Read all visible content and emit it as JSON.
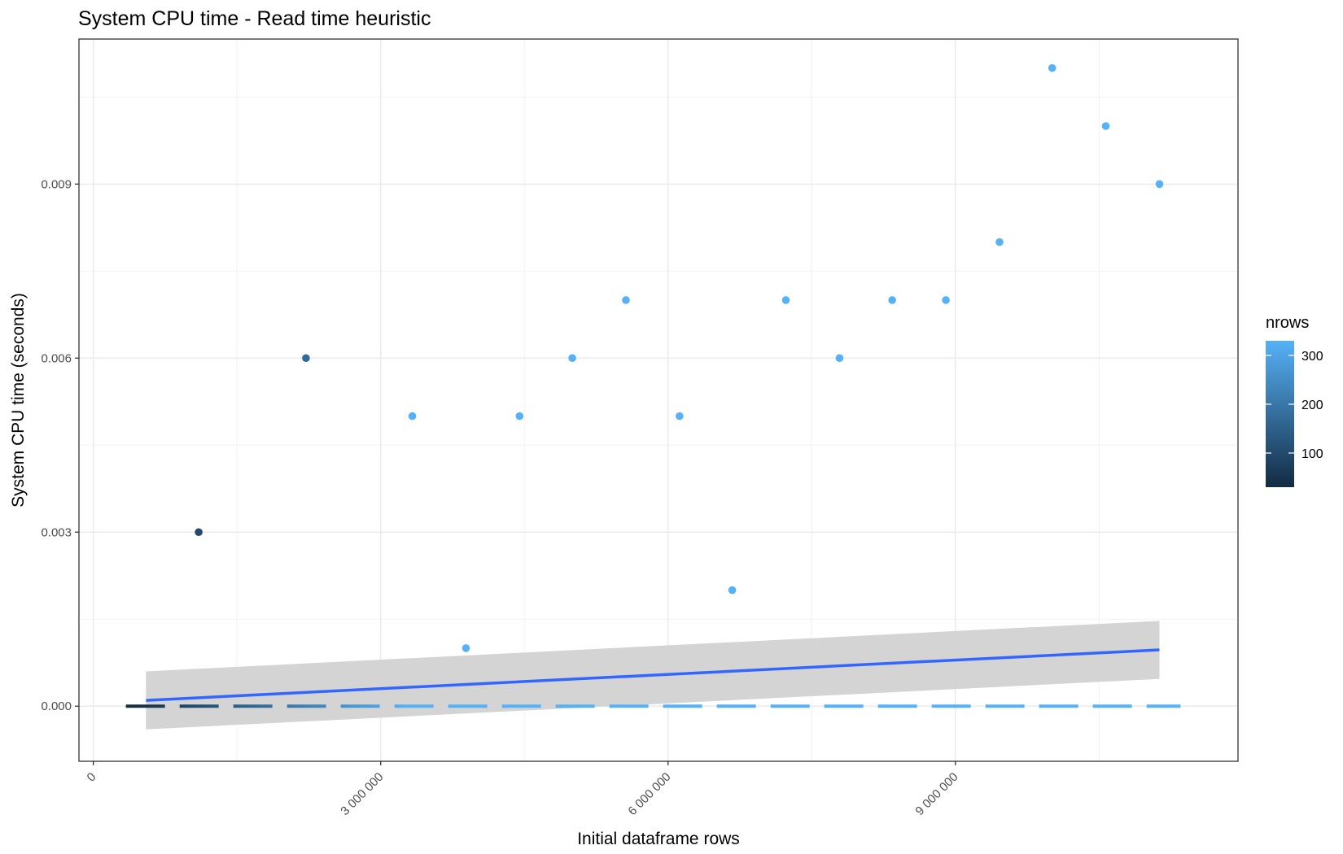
{
  "chart_data": {
    "type": "scatter",
    "title": "System CPU time - Read time heuristic",
    "xlabel": "Initial dataframe rows",
    "ylabel": "System CPU time (seconds)",
    "xlim": [
      -150000,
      11950000
    ],
    "ylim": [
      -0.00095,
      0.0115
    ],
    "x_ticks": [
      0,
      3000000,
      6000000,
      9000000
    ],
    "x_tick_labels": [
      "0",
      "3 000 000",
      "6 000 000",
      "9 000 000"
    ],
    "y_ticks": [
      0,
      0.003,
      0.006,
      0.009
    ],
    "y_tick_labels": [
      "0.000",
      "0.003",
      "0.006",
      "0.009"
    ],
    "grid": true,
    "legend_position": "right",
    "color_scale": {
      "title": "nrows",
      "low_color": "#132B43",
      "high_color": "#56B1F7",
      "min": 30,
      "max": 330,
      "breaks": [
        100,
        200,
        300
      ],
      "break_labels": [
        "100",
        "200",
        "300"
      ]
    },
    "points": [
      {
        "x": 1100000,
        "y": 0.003,
        "nrows": 100
      },
      {
        "x": 2220000,
        "y": 0.006,
        "nrows": 170
      },
      {
        "x": 3330000,
        "y": 0.005,
        "nrows": 330
      },
      {
        "x": 3890000,
        "y": 0.001,
        "nrows": 330
      },
      {
        "x": 4450000,
        "y": 0.005,
        "nrows": 330
      },
      {
        "x": 5000000,
        "y": 0.006,
        "nrows": 330
      },
      {
        "x": 5560000,
        "y": 0.007,
        "nrows": 330
      },
      {
        "x": 6120000,
        "y": 0.005,
        "nrows": 330
      },
      {
        "x": 6670000,
        "y": 0.002,
        "nrows": 330
      },
      {
        "x": 7230000,
        "y": 0.007,
        "nrows": 330
      },
      {
        "x": 7790000,
        "y": 0.006,
        "nrows": 330
      },
      {
        "x": 8340000,
        "y": 0.007,
        "nrows": 330
      },
      {
        "x": 8900000,
        "y": 0.007,
        "nrows": 330
      },
      {
        "x": 9460000,
        "y": 0.008,
        "nrows": 330
      },
      {
        "x": 10010000,
        "y": 0.011,
        "nrows": 330
      },
      {
        "x": 10570000,
        "y": 0.01,
        "nrows": 330
      },
      {
        "x": 11130000,
        "y": 0.009,
        "nrows": 330
      }
    ],
    "trend_line": {
      "color": "#3366FF",
      "x": [
        550000,
        11130000
      ],
      "y": [
        0.0001,
        0.00097
      ]
    },
    "confidence_band": {
      "color": "#d4d4d4",
      "x": [
        550000,
        11130000
      ],
      "upper": [
        0.0006,
        0.00147
      ],
      "lower": [
        -0.0004,
        0.00047
      ]
    },
    "reference_line": {
      "style": "dashed",
      "y": 0,
      "x": [
        340000,
        11350000
      ]
    }
  }
}
